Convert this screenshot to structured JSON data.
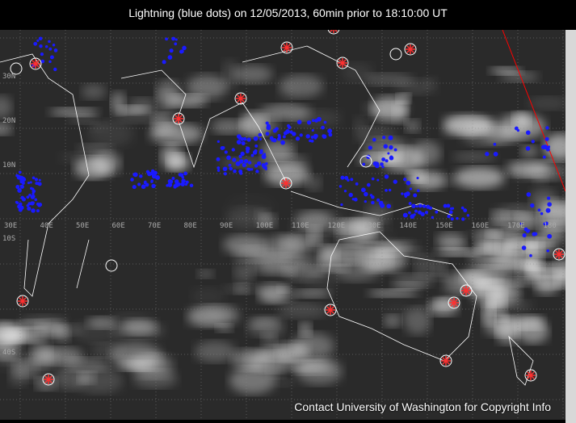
{
  "title": "Lightning (blue dots) on 12/05/2013, 60min prior to 18:10:00 UT",
  "credit": "Contact University of Washington for Copyright Info",
  "colors": {
    "lightning": "#1a1aff",
    "marker": "#ff3030",
    "coast": "#ffffff",
    "terminator": "#ff0000"
  },
  "longitude_labels": [
    "30E",
    "40E",
    "50E",
    "60E",
    "70E",
    "80E",
    "90E",
    "100E",
    "110E",
    "120E",
    "130E",
    "140E",
    "150E",
    "160E",
    "170E",
    "180"
  ],
  "latitude_labels": [
    "30N",
    "20N",
    "10N",
    "10S",
    "40S"
  ]
}
